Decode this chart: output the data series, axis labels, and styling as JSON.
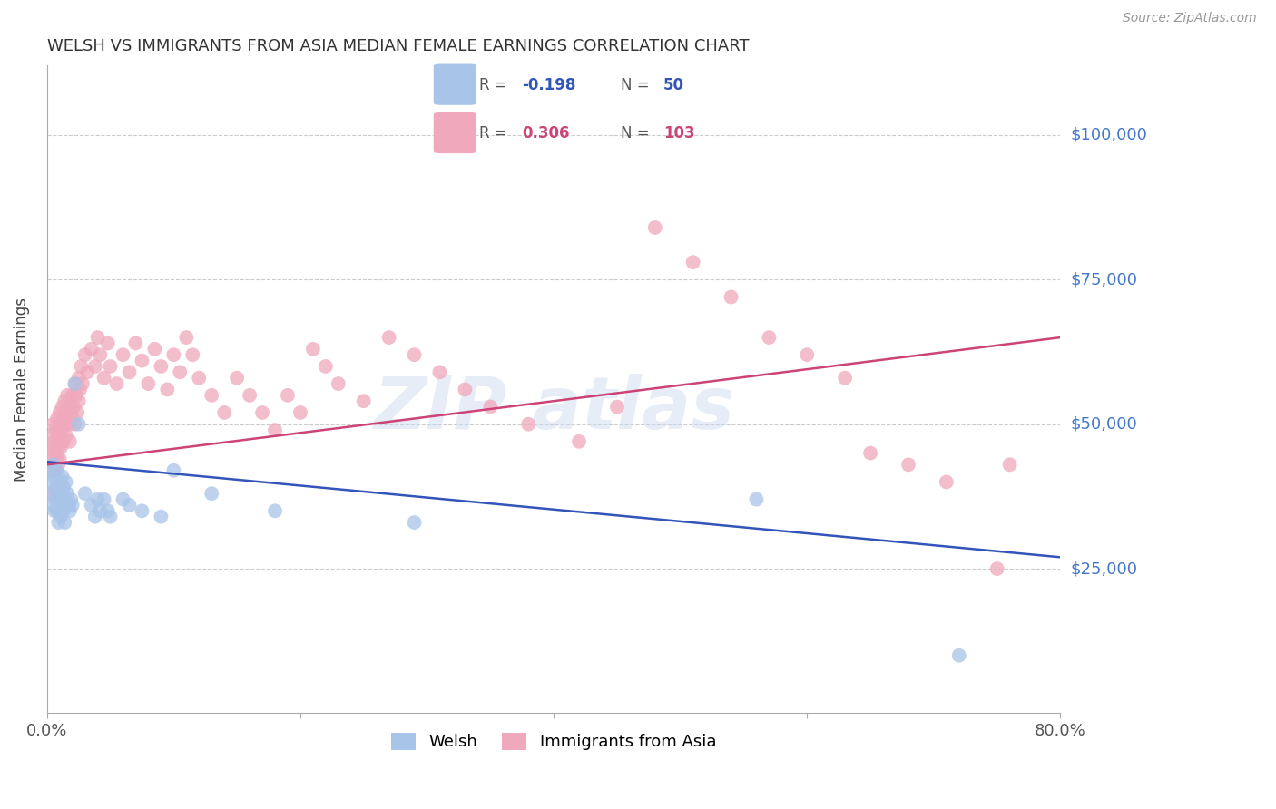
{
  "title": "WELSH VS IMMIGRANTS FROM ASIA MEDIAN FEMALE EARNINGS CORRELATION CHART",
  "source": "Source: ZipAtlas.com",
  "ylabel": "Median Female Earnings",
  "ytick_labels": [
    "$25,000",
    "$50,000",
    "$75,000",
    "$100,000"
  ],
  "ytick_values": [
    25000,
    50000,
    75000,
    100000
  ],
  "ymin": 0,
  "ymax": 112000,
  "xmin": 0.0,
  "xmax": 0.8,
  "welsh_color": "#a8c4e8",
  "asia_color": "#f0a8bc",
  "welsh_line_color": "#3355bb",
  "asia_line_color": "#cc4477",
  "legend_color1": "#a8c4e8",
  "legend_color2": "#f0a8bc",
  "legend_r1": "-0.198",
  "legend_n1": "50",
  "legend_r2": "0.306",
  "legend_n2": "103",
  "watermark": "ZIP atlas",
  "background_color": "#ffffff",
  "grid_color": "#cccccc",
  "title_color": "#333333",
  "ytick_color": "#4477cc",
  "welsh_trendline": [
    [
      0.0,
      43500
    ],
    [
      0.8,
      27000
    ]
  ],
  "asia_trendline": [
    [
      0.0,
      43000
    ],
    [
      0.8,
      65000
    ]
  ],
  "welsh_scatter": [
    [
      0.002,
      42000
    ],
    [
      0.003,
      40000
    ],
    [
      0.004,
      38000
    ],
    [
      0.005,
      43000
    ],
    [
      0.005,
      36000
    ],
    [
      0.006,
      41000
    ],
    [
      0.006,
      35000
    ],
    [
      0.007,
      39000
    ],
    [
      0.007,
      37000
    ],
    [
      0.008,
      42000
    ],
    [
      0.008,
      35000
    ],
    [
      0.009,
      38000
    ],
    [
      0.009,
      33000
    ],
    [
      0.01,
      40000
    ],
    [
      0.01,
      36000
    ],
    [
      0.011,
      38000
    ],
    [
      0.011,
      34000
    ],
    [
      0.012,
      41000
    ],
    [
      0.012,
      37000
    ],
    [
      0.013,
      39000
    ],
    [
      0.013,
      35000
    ],
    [
      0.014,
      37000
    ],
    [
      0.014,
      33000
    ],
    [
      0.015,
      40000
    ],
    [
      0.015,
      36000
    ],
    [
      0.016,
      38000
    ],
    [
      0.017,
      36000
    ],
    [
      0.018,
      35000
    ],
    [
      0.019,
      37000
    ],
    [
      0.02,
      36000
    ],
    [
      0.022,
      57000
    ],
    [
      0.025,
      50000
    ],
    [
      0.03,
      38000
    ],
    [
      0.035,
      36000
    ],
    [
      0.038,
      34000
    ],
    [
      0.04,
      37000
    ],
    [
      0.042,
      35000
    ],
    [
      0.045,
      37000
    ],
    [
      0.048,
      35000
    ],
    [
      0.05,
      34000
    ],
    [
      0.06,
      37000
    ],
    [
      0.065,
      36000
    ],
    [
      0.075,
      35000
    ],
    [
      0.09,
      34000
    ],
    [
      0.1,
      42000
    ],
    [
      0.13,
      38000
    ],
    [
      0.18,
      35000
    ],
    [
      0.29,
      33000
    ],
    [
      0.56,
      37000
    ],
    [
      0.72,
      10000
    ]
  ],
  "asia_scatter": [
    [
      0.002,
      38000
    ],
    [
      0.003,
      45000
    ],
    [
      0.003,
      42000
    ],
    [
      0.004,
      48000
    ],
    [
      0.004,
      44000
    ],
    [
      0.005,
      50000
    ],
    [
      0.005,
      46000
    ],
    [
      0.006,
      47000
    ],
    [
      0.006,
      43000
    ],
    [
      0.007,
      49000
    ],
    [
      0.007,
      45000
    ],
    [
      0.007,
      42000
    ],
    [
      0.008,
      51000
    ],
    [
      0.008,
      47000
    ],
    [
      0.008,
      44000
    ],
    [
      0.009,
      49000
    ],
    [
      0.009,
      46000
    ],
    [
      0.009,
      43000
    ],
    [
      0.01,
      52000
    ],
    [
      0.01,
      48000
    ],
    [
      0.01,
      44000
    ],
    [
      0.011,
      50000
    ],
    [
      0.011,
      46000
    ],
    [
      0.012,
      53000
    ],
    [
      0.012,
      49000
    ],
    [
      0.013,
      51000
    ],
    [
      0.013,
      47000
    ],
    [
      0.014,
      54000
    ],
    [
      0.014,
      50000
    ],
    [
      0.015,
      52000
    ],
    [
      0.015,
      48000
    ],
    [
      0.016,
      55000
    ],
    [
      0.016,
      51000
    ],
    [
      0.017,
      53000
    ],
    [
      0.018,
      50000
    ],
    [
      0.018,
      47000
    ],
    [
      0.019,
      52000
    ],
    [
      0.02,
      55000
    ],
    [
      0.02,
      51000
    ],
    [
      0.021,
      53000
    ],
    [
      0.022,
      50000
    ],
    [
      0.022,
      57000
    ],
    [
      0.023,
      55000
    ],
    [
      0.024,
      52000
    ],
    [
      0.025,
      58000
    ],
    [
      0.025,
      54000
    ],
    [
      0.026,
      56000
    ],
    [
      0.027,
      60000
    ],
    [
      0.028,
      57000
    ],
    [
      0.03,
      62000
    ],
    [
      0.032,
      59000
    ],
    [
      0.035,
      63000
    ],
    [
      0.038,
      60000
    ],
    [
      0.04,
      65000
    ],
    [
      0.042,
      62000
    ],
    [
      0.045,
      58000
    ],
    [
      0.048,
      64000
    ],
    [
      0.05,
      60000
    ],
    [
      0.055,
      57000
    ],
    [
      0.06,
      62000
    ],
    [
      0.065,
      59000
    ],
    [
      0.07,
      64000
    ],
    [
      0.075,
      61000
    ],
    [
      0.08,
      57000
    ],
    [
      0.085,
      63000
    ],
    [
      0.09,
      60000
    ],
    [
      0.095,
      56000
    ],
    [
      0.1,
      62000
    ],
    [
      0.105,
      59000
    ],
    [
      0.11,
      65000
    ],
    [
      0.115,
      62000
    ],
    [
      0.12,
      58000
    ],
    [
      0.13,
      55000
    ],
    [
      0.14,
      52000
    ],
    [
      0.15,
      58000
    ],
    [
      0.16,
      55000
    ],
    [
      0.17,
      52000
    ],
    [
      0.18,
      49000
    ],
    [
      0.19,
      55000
    ],
    [
      0.2,
      52000
    ],
    [
      0.21,
      63000
    ],
    [
      0.22,
      60000
    ],
    [
      0.23,
      57000
    ],
    [
      0.25,
      54000
    ],
    [
      0.27,
      65000
    ],
    [
      0.29,
      62000
    ],
    [
      0.31,
      59000
    ],
    [
      0.33,
      56000
    ],
    [
      0.35,
      53000
    ],
    [
      0.38,
      50000
    ],
    [
      0.42,
      47000
    ],
    [
      0.45,
      53000
    ],
    [
      0.48,
      84000
    ],
    [
      0.51,
      78000
    ],
    [
      0.54,
      72000
    ],
    [
      0.57,
      65000
    ],
    [
      0.6,
      62000
    ],
    [
      0.63,
      58000
    ],
    [
      0.65,
      45000
    ],
    [
      0.68,
      43000
    ],
    [
      0.71,
      40000
    ],
    [
      0.75,
      25000
    ],
    [
      0.76,
      43000
    ]
  ]
}
